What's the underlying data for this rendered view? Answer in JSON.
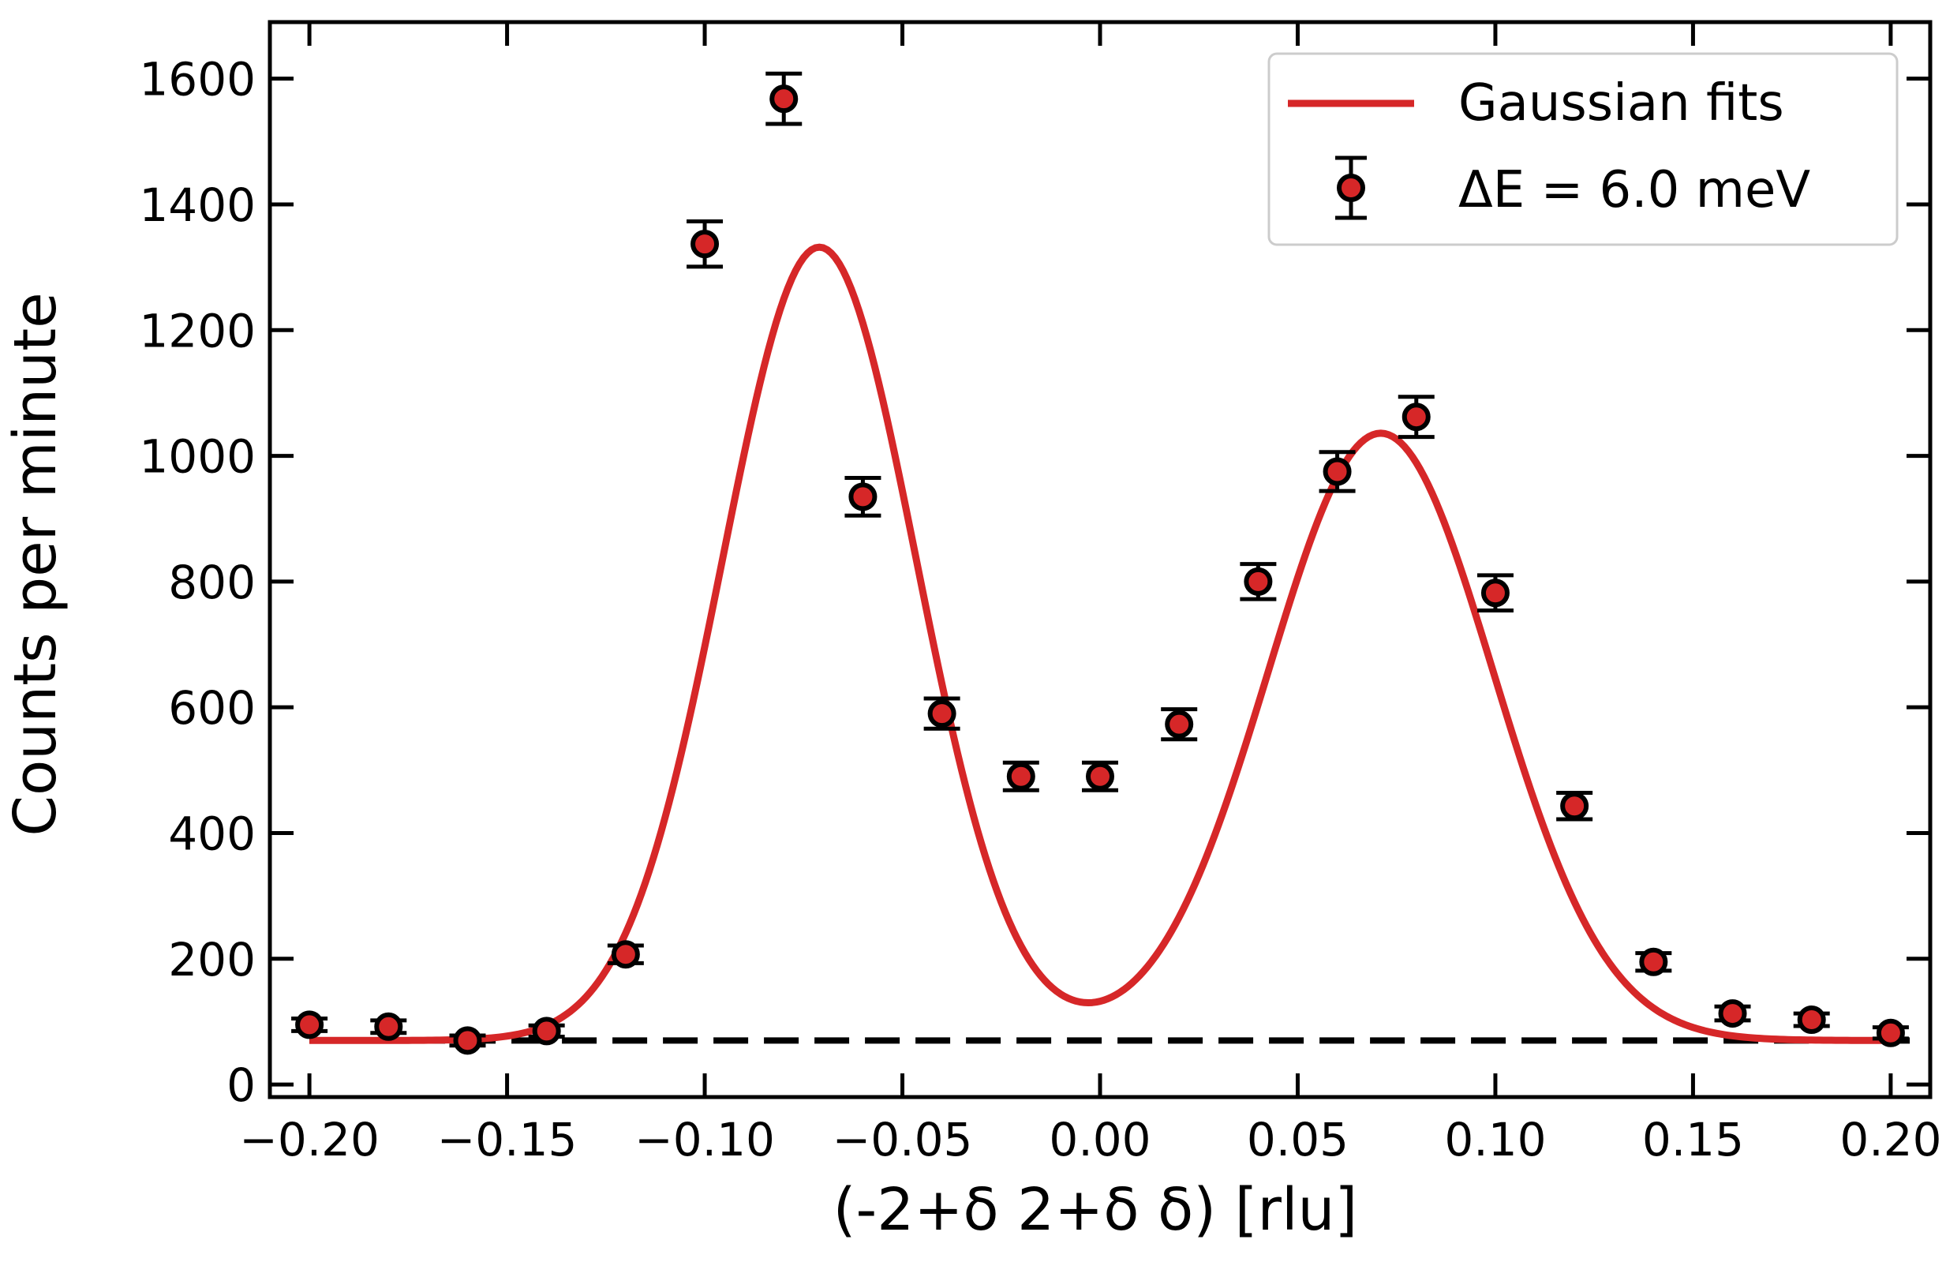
{
  "chart_data": {
    "type": "scatter",
    "xlabel": "(-2+δ  2+δ  δ) [rlu]",
    "ylabel": "Counts per minute",
    "xlim": [
      -0.21,
      0.21
    ],
    "ylim": [
      -20,
      1690
    ],
    "xticks": [
      -0.2,
      -0.15,
      -0.1,
      -0.05,
      0.0,
      0.05,
      0.1,
      0.15,
      0.2
    ],
    "xtick_labels": [
      "−0.20",
      "−0.15",
      "−0.10",
      "−0.05",
      "0.00",
      "0.05",
      "0.10",
      "0.15",
      "0.20"
    ],
    "yticks": [
      0,
      200,
      400,
      600,
      800,
      1000,
      1200,
      1400,
      1600
    ],
    "ytick_labels": [
      "0",
      "200",
      "400",
      "600",
      "800",
      "1000",
      "1200",
      "1400",
      "1600"
    ],
    "grid": false,
    "legend_position": "top-right",
    "colors": {
      "fit": "#d62728",
      "marker_fill": "#d62728",
      "marker_edge": "#000000",
      "baseline": "#000000"
    },
    "series": [
      {
        "name": "ΔE = 6.0 meV",
        "kind": "errorbar",
        "x": [
          -0.2,
          -0.18,
          -0.16,
          -0.14,
          -0.12,
          -0.1,
          -0.08,
          -0.06,
          -0.04,
          -0.02,
          0.0,
          0.02,
          0.04,
          0.06,
          0.08,
          0.1,
          0.12,
          0.14,
          0.16,
          0.18,
          0.2
        ],
        "y": [
          95,
          92,
          70,
          85,
          207,
          1337,
          1568,
          935,
          590,
          490,
          490,
          573,
          800,
          975,
          1062,
          782,
          443,
          195,
          113,
          103,
          82
        ],
        "yerr": [
          10,
          10,
          8,
          9,
          14,
          36,
          40,
          30,
          24,
          22,
          22,
          24,
          28,
          31,
          32,
          28,
          21,
          14,
          11,
          10,
          9
        ]
      },
      {
        "name": "Gaussian fits",
        "kind": "line",
        "baseline": 70,
        "peaks": [
          {
            "amplitude": 1262,
            "center": -0.071,
            "sigma": 0.0245
          },
          {
            "amplitude": 966,
            "center": 0.071,
            "sigma": 0.0285
          }
        ],
        "x_range": [
          -0.2,
          0.2
        ]
      },
      {
        "kind": "dashed-baseline",
        "y": 70,
        "x_range": [
          -0.2,
          0.205
        ]
      }
    ]
  }
}
